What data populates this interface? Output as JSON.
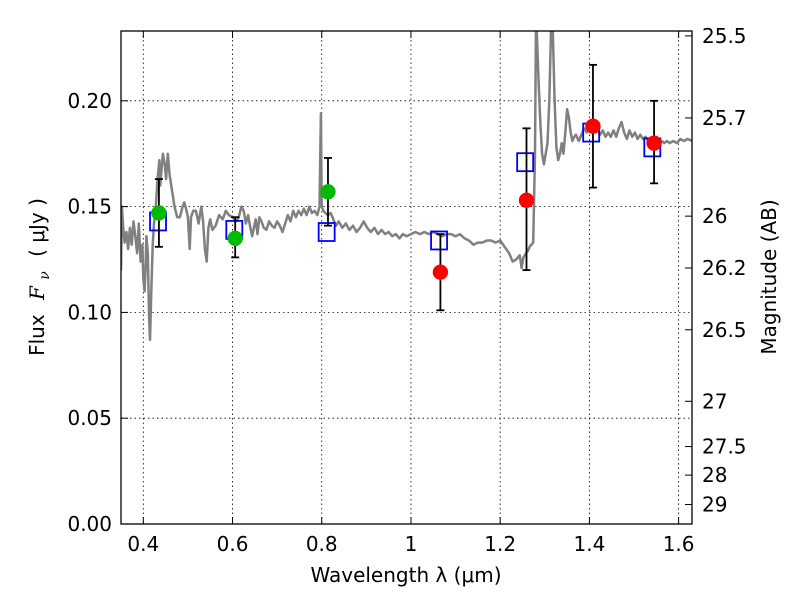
{
  "chart_data": {
    "type": "scatter",
    "xlabel": "Wavelength  λ (μm)",
    "ylabel_left_prefix": "Flux",
    "ylabel_left_symbol": "F",
    "ylabel_left_subscript": "ν",
    "ylabel_left_units": "( μJy )",
    "ylabel_right": "Magnitude (AB)",
    "xlim": [
      0.35,
      1.63
    ],
    "ylim": [
      0.0,
      0.233
    ],
    "grid": true,
    "x_ticks": [
      0.4,
      0.6,
      0.8,
      1.0,
      1.2,
      1.4,
      1.6
    ],
    "x_tick_labels": [
      "0.4",
      "0.6",
      "0.8",
      "1",
      "1.2",
      "1.4",
      "1.6"
    ],
    "y_ticks": [
      0.0,
      0.05,
      0.1,
      0.15,
      0.2
    ],
    "y_tick_labels": [
      "0.00",
      "0.05",
      "0.10",
      "0.15",
      "0.20"
    ],
    "right_ticks": [
      {
        "flux": 0.2307,
        "label": "25.5"
      },
      {
        "flux": 0.1919,
        "label": "25.7"
      },
      {
        "flux": 0.1455,
        "label": "26"
      },
      {
        "flux": 0.121,
        "label": "26.2"
      },
      {
        "flux": 0.0918,
        "label": "26.5"
      },
      {
        "flux": 0.058,
        "label": "27"
      },
      {
        "flux": 0.0366,
        "label": "27.5"
      },
      {
        "flux": 0.0231,
        "label": "28"
      },
      {
        "flux": 0.0092,
        "label": "29"
      }
    ],
    "colors": {
      "spectrum": "#808080",
      "model_square": "#0000ff",
      "optical_point": "#00bb00",
      "nir_point": "#ff0000",
      "error_bar": "#000000"
    },
    "spectrum": {
      "name": "",
      "points": [
        [
          0.35,
          0.12
        ],
        [
          0.352,
          0.15
        ],
        [
          0.355,
          0.14
        ],
        [
          0.358,
          0.133
        ],
        [
          0.362,
          0.138
        ],
        [
          0.366,
          0.13
        ],
        [
          0.37,
          0.14
        ],
        [
          0.374,
          0.132
        ],
        [
          0.378,
          0.143
        ],
        [
          0.382,
          0.136
        ],
        [
          0.386,
          0.128
        ],
        [
          0.39,
          0.142
        ],
        [
          0.394,
          0.124
        ],
        [
          0.398,
          0.132
        ],
        [
          0.4,
          0.116
        ],
        [
          0.403,
          0.11
        ],
        [
          0.405,
          0.12
        ],
        [
          0.407,
          0.136
        ],
        [
          0.41,
          0.128
        ],
        [
          0.413,
          0.098
        ],
        [
          0.415,
          0.087
        ],
        [
          0.418,
          0.11
        ],
        [
          0.421,
          0.132
        ],
        [
          0.424,
          0.142
        ],
        [
          0.428,
          0.15
        ],
        [
          0.432,
          0.163
        ],
        [
          0.436,
          0.172
        ],
        [
          0.438,
          0.16
        ],
        [
          0.441,
          0.168
        ],
        [
          0.444,
          0.175
        ],
        [
          0.448,
          0.17
        ],
        [
          0.451,
          0.163
        ],
        [
          0.455,
          0.175
        ],
        [
          0.459,
          0.165
        ],
        [
          0.464,
          0.158
        ],
        [
          0.47,
          0.15
        ],
        [
          0.476,
          0.145
        ],
        [
          0.482,
          0.145
        ],
        [
          0.488,
          0.15
        ],
        [
          0.492,
          0.152
        ],
        [
          0.497,
          0.148
        ],
        [
          0.5,
          0.145
        ],
        [
          0.504,
          0.13
        ],
        [
          0.507,
          0.145
        ],
        [
          0.512,
          0.148
        ],
        [
          0.518,
          0.148
        ],
        [
          0.524,
          0.142
        ],
        [
          0.53,
          0.15
        ],
        [
          0.534,
          0.143
        ],
        [
          0.538,
          0.13
        ],
        [
          0.542,
          0.124
        ],
        [
          0.546,
          0.14
        ],
        [
          0.55,
          0.144
        ],
        [
          0.555,
          0.139
        ],
        [
          0.562,
          0.141
        ],
        [
          0.57,
          0.146
        ],
        [
          0.578,
          0.144
        ],
        [
          0.585,
          0.148
        ],
        [
          0.592,
          0.146
        ],
        [
          0.6,
          0.145
        ],
        [
          0.608,
          0.143
        ],
        [
          0.614,
          0.145
        ],
        [
          0.62,
          0.15
        ],
        [
          0.625,
          0.148
        ],
        [
          0.63,
          0.142
        ],
        [
          0.635,
          0.146
        ],
        [
          0.64,
          0.14
        ],
        [
          0.644,
          0.136
        ],
        [
          0.648,
          0.14
        ],
        [
          0.652,
          0.144
        ],
        [
          0.656,
          0.137
        ],
        [
          0.66,
          0.145
        ],
        [
          0.665,
          0.143
        ],
        [
          0.67,
          0.14
        ],
        [
          0.676,
          0.139
        ],
        [
          0.682,
          0.143
        ],
        [
          0.688,
          0.141
        ],
        [
          0.694,
          0.14
        ],
        [
          0.7,
          0.143
        ],
        [
          0.706,
          0.141
        ],
        [
          0.712,
          0.138
        ],
        [
          0.718,
          0.142
        ],
        [
          0.724,
          0.146
        ],
        [
          0.73,
          0.143
        ],
        [
          0.736,
          0.148
        ],
        [
          0.742,
          0.145
        ],
        [
          0.748,
          0.148
        ],
        [
          0.754,
          0.146
        ],
        [
          0.76,
          0.149
        ],
        [
          0.766,
          0.146
        ],
        [
          0.772,
          0.15
        ],
        [
          0.778,
          0.147
        ],
        [
          0.784,
          0.148
        ],
        [
          0.79,
          0.146
        ],
        [
          0.795,
          0.15
        ],
        [
          0.798,
          0.194
        ],
        [
          0.8,
          0.15
        ],
        [
          0.804,
          0.148
        ],
        [
          0.808,
          0.147
        ],
        [
          0.814,
          0.146
        ],
        [
          0.82,
          0.147
        ],
        [
          0.826,
          0.144
        ],
        [
          0.832,
          0.141
        ],
        [
          0.838,
          0.143
        ],
        [
          0.846,
          0.14
        ],
        [
          0.854,
          0.142
        ],
        [
          0.862,
          0.139
        ],
        [
          0.87,
          0.141
        ],
        [
          0.878,
          0.138
        ],
        [
          0.886,
          0.14
        ],
        [
          0.894,
          0.143
        ],
        [
          0.902,
          0.14
        ],
        [
          0.91,
          0.138
        ],
        [
          0.918,
          0.14
        ],
        [
          0.926,
          0.137
        ],
        [
          0.934,
          0.139
        ],
        [
          0.942,
          0.137
        ],
        [
          0.95,
          0.138
        ],
        [
          0.958,
          0.136
        ],
        [
          0.966,
          0.137
        ],
        [
          0.974,
          0.135
        ],
        [
          0.982,
          0.137
        ],
        [
          0.99,
          0.136
        ],
        [
          1.0,
          0.137
        ],
        [
          1.01,
          0.138
        ],
        [
          1.02,
          0.137
        ],
        [
          1.03,
          0.138
        ],
        [
          1.04,
          0.137
        ],
        [
          1.05,
          0.138
        ],
        [
          1.06,
          0.137
        ],
        [
          1.07,
          0.136
        ],
        [
          1.08,
          0.137
        ],
        [
          1.09,
          0.137
        ],
        [
          1.1,
          0.136
        ],
        [
          1.11,
          0.137
        ],
        [
          1.12,
          0.135
        ],
        [
          1.13,
          0.134
        ],
        [
          1.14,
          0.132
        ],
        [
          1.15,
          0.133
        ],
        [
          1.16,
          0.133
        ],
        [
          1.17,
          0.134
        ],
        [
          1.18,
          0.134
        ],
        [
          1.19,
          0.133
        ],
        [
          1.2,
          0.134
        ],
        [
          1.21,
          0.131
        ],
        [
          1.22,
          0.128
        ],
        [
          1.228,
          0.124
        ],
        [
          1.236,
          0.125
        ],
        [
          1.244,
          0.127
        ],
        [
          1.248,
          0.121
        ],
        [
          1.252,
          0.126
        ],
        [
          1.258,
          0.128
        ],
        [
          1.262,
          0.129
        ],
        [
          1.266,
          0.131
        ],
        [
          1.27,
          0.132
        ],
        [
          1.274,
          0.133
        ],
        [
          1.278,
          0.175
        ],
        [
          1.28,
          0.233
        ],
        [
          1.282,
          0.233
        ],
        [
          1.286,
          0.21
        ],
        [
          1.29,
          0.19
        ],
        [
          1.294,
          0.175
        ],
        [
          1.298,
          0.17
        ],
        [
          1.302,
          0.175
        ],
        [
          1.306,
          0.18
        ],
        [
          1.31,
          0.2
        ],
        [
          1.314,
          0.233
        ],
        [
          1.318,
          0.233
        ],
        [
          1.322,
          0.2
        ],
        [
          1.326,
          0.178
        ],
        [
          1.33,
          0.172
        ],
        [
          1.334,
          0.175
        ],
        [
          1.338,
          0.18
        ],
        [
          1.342,
          0.175
        ],
        [
          1.346,
          0.185
        ],
        [
          1.35,
          0.196
        ],
        [
          1.354,
          0.192
        ],
        [
          1.358,
          0.185
        ],
        [
          1.362,
          0.181
        ],
        [
          1.366,
          0.183
        ],
        [
          1.37,
          0.184
        ],
        [
          1.376,
          0.181
        ],
        [
          1.382,
          0.184
        ],
        [
          1.388,
          0.187
        ],
        [
          1.394,
          0.185
        ],
        [
          1.4,
          0.188
        ],
        [
          1.406,
          0.186
        ],
        [
          1.412,
          0.189
        ],
        [
          1.418,
          0.187
        ],
        [
          1.424,
          0.184
        ],
        [
          1.43,
          0.186
        ],
        [
          1.436,
          0.183
        ],
        [
          1.442,
          0.185
        ],
        [
          1.448,
          0.183
        ],
        [
          1.454,
          0.186
        ],
        [
          1.46,
          0.183
        ],
        [
          1.466,
          0.187
        ],
        [
          1.472,
          0.19
        ],
        [
          1.478,
          0.185
        ],
        [
          1.484,
          0.182
        ],
        [
          1.49,
          0.186
        ],
        [
          1.496,
          0.183
        ],
        [
          1.502,
          0.185
        ],
        [
          1.508,
          0.182
        ],
        [
          1.514,
          0.184
        ],
        [
          1.52,
          0.182
        ],
        [
          1.526,
          0.183
        ],
        [
          1.532,
          0.181
        ],
        [
          1.538,
          0.182
        ],
        [
          1.544,
          0.181
        ],
        [
          1.55,
          0.182
        ],
        [
          1.556,
          0.18
        ],
        [
          1.562,
          0.181
        ],
        [
          1.568,
          0.18
        ],
        [
          1.574,
          0.181
        ],
        [
          1.58,
          0.18
        ],
        [
          1.588,
          0.181
        ],
        [
          1.596,
          0.18
        ],
        [
          1.604,
          0.182
        ],
        [
          1.612,
          0.181
        ],
        [
          1.62,
          0.182
        ],
        [
          1.63,
          0.181
        ]
      ]
    },
    "model_squares": [
      {
        "x": 0.433,
        "y": 0.143
      },
      {
        "x": 0.604,
        "y": 0.139
      },
      {
        "x": 0.811,
        "y": 0.138
      },
      {
        "x": 1.063,
        "y": 0.134
      },
      {
        "x": 1.256,
        "y": 0.171
      },
      {
        "x": 1.404,
        "y": 0.185
      },
      {
        "x": 1.541,
        "y": 0.178
      }
    ],
    "series": [
      {
        "name": "",
        "color": "#00bb00",
        "points": [
          {
            "x": 0.435,
            "y": 0.147,
            "err_low": 0.131,
            "err_high": 0.163
          },
          {
            "x": 0.606,
            "y": 0.135,
            "err_low": 0.126,
            "err_high": 0.145
          },
          {
            "x": 0.814,
            "y": 0.157,
            "err_low": 0.141,
            "err_high": 0.173
          }
        ]
      },
      {
        "name": "",
        "color": "#ff0000",
        "points": [
          {
            "x": 1.066,
            "y": 0.119,
            "err_low": 0.101,
            "err_high": 0.137
          },
          {
            "x": 1.259,
            "y": 0.153,
            "err_low": 0.12,
            "err_high": 0.187
          },
          {
            "x": 1.408,
            "y": 0.188,
            "err_low": 0.159,
            "err_high": 0.217
          },
          {
            "x": 1.545,
            "y": 0.18,
            "err_low": 0.161,
            "err_high": 0.2
          }
        ]
      }
    ]
  }
}
